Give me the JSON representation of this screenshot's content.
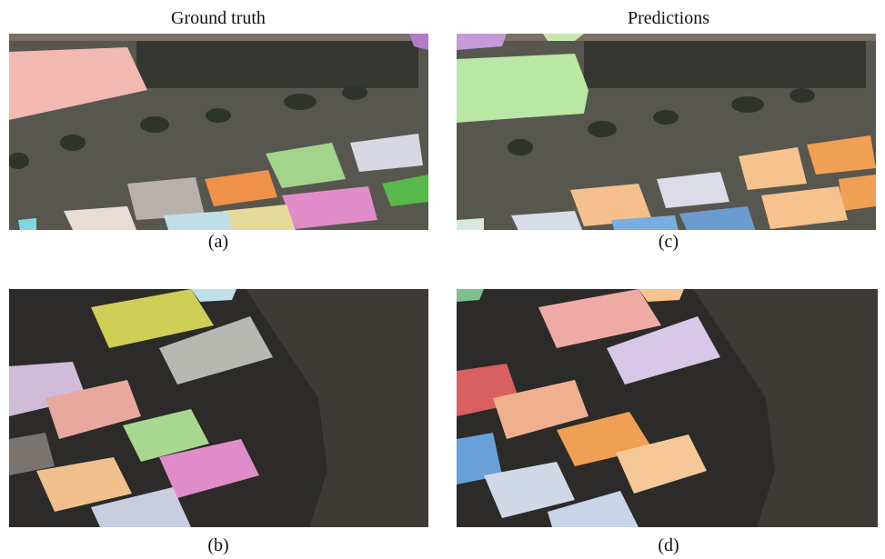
{
  "headers": {
    "left": "Ground truth",
    "right": "Predictions"
  },
  "panels": [
    {
      "label": "(a)"
    },
    {
      "label": "(c)"
    },
    {
      "label": "(b)"
    },
    {
      "label": "(d)"
    }
  ]
}
